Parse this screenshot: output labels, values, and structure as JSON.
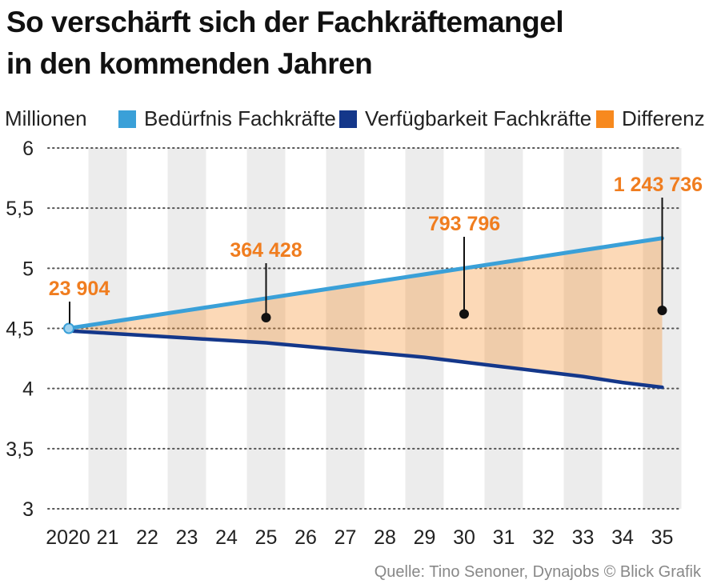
{
  "title": {
    "line1": "So verschärft sich der Fachkräftemangel",
    "line2": "in den kommenden Jahren"
  },
  "legend": {
    "unit": "Millionen",
    "items": [
      {
        "label": "Bedürfnis Fachkräfte",
        "color": "#3aa0d8"
      },
      {
        "label": "Verfügbarkeit Fachkräfte",
        "color": "#14378a"
      },
      {
        "label": "Differenz",
        "color": "#f7891e"
      }
    ]
  },
  "source": "Quelle: Tino Senoner, Dynajobs  © Blick Grafik",
  "chart_data": {
    "type": "area",
    "x": [
      2020,
      2021,
      2022,
      2023,
      2024,
      2025,
      2026,
      2027,
      2028,
      2029,
      2030,
      2031,
      2032,
      2033,
      2034,
      2035
    ],
    "x_tick_labels": [
      "2020",
      "21",
      "22",
      "23",
      "24",
      "25",
      "26",
      "27",
      "28",
      "29",
      "30",
      "31",
      "32",
      "33",
      "34",
      "35"
    ],
    "y_ticks": [
      3,
      3.5,
      4,
      4.5,
      5,
      5.5,
      6
    ],
    "y_tick_labels": [
      "3",
      "3,5",
      "4",
      "4,5",
      "5",
      "5,5",
      "6"
    ],
    "ylim": [
      3,
      6
    ],
    "ylabel": "Millionen",
    "series": [
      {
        "name": "Bedürfnis Fachkräfte",
        "color": "#3aa0d8",
        "values": [
          4.5,
          4.55,
          4.6,
          4.65,
          4.7,
          4.75,
          4.8,
          4.85,
          4.9,
          4.95,
          5.0,
          5.05,
          5.1,
          5.15,
          5.2,
          5.25
        ]
      },
      {
        "name": "Verfügbarkeit Fachkräfte",
        "color": "#14378a",
        "values": [
          4.48,
          4.46,
          4.44,
          4.42,
          4.4,
          4.38,
          4.35,
          4.32,
          4.29,
          4.26,
          4.22,
          4.18,
          4.14,
          4.1,
          4.05,
          4.01
        ]
      }
    ],
    "difference": {
      "name": "Differenz",
      "color": "#f7891e",
      "annotations": [
        {
          "x": 2020,
          "label": "23 904",
          "dot_y": 4.5
        },
        {
          "x": 2025,
          "label": "364 428",
          "dot_y": 4.59
        },
        {
          "x": 2030,
          "label": "793 796",
          "dot_y": 4.62
        },
        {
          "x": 2035,
          "label": "1 243 736",
          "dot_y": 4.65
        }
      ]
    },
    "grid": "dotted horizontal",
    "alternating_column_shading": true
  }
}
